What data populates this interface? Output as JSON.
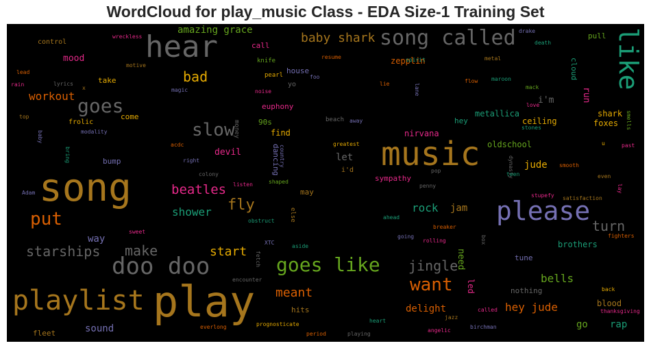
{
  "chart_title": "WordCloud for play_music Class - EDA Size-1 Training Set",
  "chart_data": {
    "type": "wordcloud",
    "title": "WordCloud for play_music Class - EDA Size-1 Training Set",
    "background": "#000000",
    "colormap": "Dark2",
    "words": [
      {
        "text": "play",
        "color": "#a6761d",
        "weight": 1.0
      },
      {
        "text": "song",
        "color": "#a6761d",
        "weight": 0.9
      },
      {
        "text": "music",
        "color": "#a6761d",
        "weight": 0.85
      },
      {
        "text": "playlist",
        "color": "#a6761d",
        "weight": 0.72
      },
      {
        "text": "please",
        "color": "#7570b3",
        "weight": 0.74
      },
      {
        "text": "hear",
        "color": "#666666",
        "weight": 0.7
      },
      {
        "text": "doo doo",
        "color": "#666666",
        "weight": 0.65
      },
      {
        "text": "song called",
        "color": "#666666",
        "weight": 0.6
      },
      {
        "text": "like",
        "color": "#1b9e77",
        "weight": 0.6
      },
      {
        "text": "goes like",
        "color": "#66a61e",
        "weight": 0.55
      },
      {
        "text": "goes",
        "color": "#666666",
        "weight": 0.5
      },
      {
        "text": "put",
        "color": "#d95f02",
        "weight": 0.47
      },
      {
        "text": "slow",
        "color": "#666666",
        "weight": 0.46
      },
      {
        "text": "want",
        "color": "#d95f02",
        "weight": 0.45
      },
      {
        "text": "starships",
        "color": "#666666",
        "weight": 0.38
      },
      {
        "text": "make",
        "color": "#666666",
        "weight": 0.38
      },
      {
        "text": "beatles",
        "color": "#e7298a",
        "weight": 0.38
      },
      {
        "text": "fly",
        "color": "#a6761d",
        "weight": 0.38
      },
      {
        "text": "turn",
        "color": "#666666",
        "weight": 0.38
      },
      {
        "text": "bad",
        "color": "#e6ab02",
        "weight": 0.36
      },
      {
        "text": "baby shark",
        "color": "#a6761d",
        "weight": 0.34
      },
      {
        "text": "start",
        "color": "#e6ab02",
        "weight": 0.34
      },
      {
        "text": "jingle",
        "color": "#666666",
        "weight": 0.33
      },
      {
        "text": "meant",
        "color": "#d95f02",
        "weight": 0.32
      },
      {
        "text": "workout",
        "color": "#d95f02",
        "weight": 0.31
      },
      {
        "text": "rock",
        "color": "#1b9e77",
        "weight": 0.3
      },
      {
        "text": "bells",
        "color": "#66a61e",
        "weight": 0.3
      },
      {
        "text": "hey jude",
        "color": "#d95f02",
        "weight": 0.3
      },
      {
        "text": "shower",
        "color": "#1b9e77",
        "weight": 0.3
      },
      {
        "text": "amazing grace",
        "color": "#66a61e",
        "weight": 0.26
      },
      {
        "text": "jam",
        "color": "#a6761d",
        "weight": 0.26
      },
      {
        "text": "delight",
        "color": "#d95f02",
        "weight": 0.26
      },
      {
        "text": "need",
        "color": "#66a61e",
        "weight": 0.24
      },
      {
        "text": "run",
        "color": "#e7298a",
        "weight": 0.24
      },
      {
        "text": "let",
        "color": "#666666",
        "weight": 0.24
      },
      {
        "text": "jude",
        "color": "#e6ab02",
        "weight": 0.24
      },
      {
        "text": "sound",
        "color": "#7570b3",
        "weight": 0.24
      },
      {
        "text": "way",
        "color": "#7570b3",
        "weight": 0.24
      },
      {
        "text": "devil",
        "color": "#e7298a",
        "weight": 0.24
      },
      {
        "text": "go",
        "color": "#66a61e",
        "weight": 0.24
      },
      {
        "text": "rap",
        "color": "#1b9e77",
        "weight": 0.24
      },
      {
        "text": "mood",
        "color": "#e7298a",
        "weight": 0.24
      },
      {
        "text": "led",
        "color": "#e7298a",
        "weight": 0.2
      },
      {
        "text": "i'm",
        "color": "#666666",
        "weight": 0.2
      },
      {
        "text": "shark",
        "color": "#e6ab02",
        "weight": 0.2
      },
      {
        "text": "foxes",
        "color": "#e6ab02",
        "weight": 0.2
      },
      {
        "text": "ceiling",
        "color": "#e6ab02",
        "weight": 0.2
      },
      {
        "text": "metallica",
        "color": "#1b9e77",
        "weight": 0.2
      },
      {
        "text": "oldschool",
        "color": "#66a61e",
        "weight": 0.2
      },
      {
        "text": "nirvana",
        "color": "#e7298a",
        "weight": 0.2
      },
      {
        "text": "brothers",
        "color": "#1b9e77",
        "weight": 0.2
      },
      {
        "text": "blood",
        "color": "#a6761d",
        "weight": 0.2
      },
      {
        "text": "zepplin",
        "color": "#d95f02",
        "weight": 0.2
      },
      {
        "text": "nothing",
        "color": "#666666",
        "weight": 0.2
      },
      {
        "text": "tune",
        "color": "#7570b3",
        "weight": 0.18
      },
      {
        "text": "find",
        "color": "#e6ab02",
        "weight": 0.18
      },
      {
        "text": "goes (small)",
        "color": "#666666",
        "weight": 0.0
      },
      {
        "text": "dancing",
        "color": "#7570b3",
        "weight": 0.18
      },
      {
        "text": "may",
        "color": "#a6761d",
        "weight": 0.18
      },
      {
        "text": "hey",
        "color": "#1b9e77",
        "weight": 0.18
      },
      {
        "text": "cloud",
        "color": "#1b9e77",
        "weight": 0.18
      },
      {
        "text": "house",
        "color": "#7570b3",
        "weight": 0.16
      },
      {
        "text": "euphony",
        "color": "#e7298a",
        "weight": 0.16
      },
      {
        "text": "sympathy",
        "color": "#e7298a",
        "weight": 0.16
      },
      {
        "text": "hits",
        "color": "#a6761d",
        "weight": 0.16
      },
      {
        "text": "fleet",
        "color": "#a6761d",
        "weight": 0.14
      },
      {
        "text": "call",
        "color": "#e7298a",
        "weight": 0.16
      },
      {
        "text": "come",
        "color": "#e6ab02",
        "weight": 0.16
      },
      {
        "text": "take",
        "color": "#e6ab02",
        "weight": 0.16
      },
      {
        "text": "bump",
        "color": "#7570b3",
        "weight": 0.14
      },
      {
        "text": "pull",
        "color": "#66a61e",
        "weight": 0.16
      },
      {
        "text": "90s",
        "color": "#66a61e",
        "weight": 0.16
      },
      {
        "text": "control",
        "color": "#a6761d",
        "weight": 0.14
      },
      {
        "text": "yo",
        "color": "#666666",
        "weight": 0.14
      },
      {
        "text": "i'd",
        "color": "#a6761d",
        "weight": 0.14
      },
      {
        "text": "frolic",
        "color": "#e6ab02",
        "weight": 0.12
      },
      {
        "text": "money",
        "color": "#666666",
        "weight": 0.12
      }
    ]
  },
  "words": [
    {
      "text": "play",
      "color": "#a6761d"
    },
    {
      "text": "song",
      "color": "#a6761d"
    },
    {
      "text": "music",
      "color": "#a6761d"
    },
    {
      "text": "playlist",
      "color": "#a6761d"
    },
    {
      "text": "please",
      "color": "#7570b3"
    },
    {
      "text": "hear",
      "color": "#666666"
    },
    {
      "text": "doo doo",
      "color": "#666666"
    },
    {
      "text": "song called",
      "color": "#666666"
    },
    {
      "text": "like",
      "color": "#1b9e77"
    },
    {
      "text": "goes like",
      "color": "#66a61e"
    },
    {
      "text": "goes",
      "color": "#666666"
    },
    {
      "text": "put",
      "color": "#d95f02"
    },
    {
      "text": "slow",
      "color": "#666666"
    },
    {
      "text": "want",
      "color": "#d95f02"
    },
    {
      "text": "starships",
      "color": "#666666"
    },
    {
      "text": "make",
      "color": "#666666"
    },
    {
      "text": "beatles",
      "color": "#e7298a"
    },
    {
      "text": "fly",
      "color": "#a6761d"
    },
    {
      "text": "turn",
      "color": "#666666"
    },
    {
      "text": "bad",
      "color": "#e6ab02"
    },
    {
      "text": "baby shark",
      "color": "#a6761d"
    },
    {
      "text": "start",
      "color": "#e6ab02"
    },
    {
      "text": "jingle",
      "color": "#666666"
    },
    {
      "text": "meant",
      "color": "#d95f02"
    },
    {
      "text": "workout",
      "color": "#d95f02"
    },
    {
      "text": "rock",
      "color": "#1b9e77"
    },
    {
      "text": "bells",
      "color": "#66a61e"
    },
    {
      "text": "hey jude",
      "color": "#d95f02"
    },
    {
      "text": "shower",
      "color": "#1b9e77"
    },
    {
      "text": "amazing grace",
      "color": "#66a61e"
    },
    {
      "text": "jam",
      "color": "#a6761d"
    },
    {
      "text": "delight",
      "color": "#d95f02"
    },
    {
      "text": "need",
      "color": "#66a61e"
    },
    {
      "text": "run",
      "color": "#e7298a"
    },
    {
      "text": "let",
      "color": "#666666"
    },
    {
      "text": "jude",
      "color": "#e6ab02"
    },
    {
      "text": "sound",
      "color": "#7570b3"
    },
    {
      "text": "way",
      "color": "#7570b3"
    },
    {
      "text": "devil",
      "color": "#e7298a"
    },
    {
      "text": "go",
      "color": "#66a61e"
    },
    {
      "text": "rap",
      "color": "#1b9e77"
    },
    {
      "text": "mood",
      "color": "#e7298a"
    },
    {
      "text": "led",
      "color": "#e7298a"
    },
    {
      "text": "i'm",
      "color": "#666666"
    },
    {
      "text": "shark",
      "color": "#e6ab02"
    },
    {
      "text": "foxes",
      "color": "#e6ab02"
    },
    {
      "text": "ceiling",
      "color": "#e6ab02"
    },
    {
      "text": "metallica",
      "color": "#1b9e77"
    },
    {
      "text": "oldschool",
      "color": "#66a61e"
    },
    {
      "text": "nirvana",
      "color": "#e7298a"
    },
    {
      "text": "brothers",
      "color": "#1b9e77"
    },
    {
      "text": "blood",
      "color": "#a6761d"
    },
    {
      "text": "zepplin",
      "color": "#d95f02"
    },
    {
      "text": "nothing",
      "color": "#666666"
    },
    {
      "text": "tune",
      "color": "#7570b3"
    },
    {
      "text": "find",
      "color": "#e6ab02"
    },
    {
      "text": "dancing",
      "color": "#7570b3"
    },
    {
      "text": "may",
      "color": "#a6761d"
    },
    {
      "text": "hey",
      "color": "#1b9e77"
    },
    {
      "text": "cloud",
      "color": "#1b9e77"
    },
    {
      "text": "house",
      "color": "#7570b3"
    },
    {
      "text": "euphony",
      "color": "#e7298a"
    },
    {
      "text": "sympathy",
      "color": "#e7298a"
    },
    {
      "text": "hits",
      "color": "#a6761d"
    },
    {
      "text": "fleet",
      "color": "#a6761d"
    },
    {
      "text": "call",
      "color": "#e7298a"
    },
    {
      "text": "come",
      "color": "#e6ab02"
    },
    {
      "text": "take",
      "color": "#e6ab02"
    },
    {
      "text": "bump",
      "color": "#7570b3"
    },
    {
      "text": "pull",
      "color": "#66a61e"
    },
    {
      "text": "90s",
      "color": "#66a61e"
    },
    {
      "text": "control",
      "color": "#a6761d"
    },
    {
      "text": "yo",
      "color": "#666666"
    },
    {
      "text": "i'd",
      "color": "#a6761d"
    },
    {
      "text": "frolic",
      "color": "#e6ab02"
    },
    {
      "text": "money",
      "color": "#666666"
    },
    {
      "text": "knife",
      "color": "#66a61e"
    },
    {
      "text": "pearl",
      "color": "#e6ab02"
    },
    {
      "text": "spirit",
      "color": "#1b9e77"
    },
    {
      "text": "flow",
      "color": "#d95f02"
    },
    {
      "text": "maroon",
      "color": "#1b9e77"
    },
    {
      "text": "mack",
      "color": "#66a61e"
    },
    {
      "text": "love",
      "color": "#e7298a"
    },
    {
      "text": "stones",
      "color": "#1b9e77"
    },
    {
      "text": "drake",
      "color": "#7570b3"
    },
    {
      "text": "death",
      "color": "#1b9e77"
    },
    {
      "text": "metal",
      "color": "#a6761d"
    },
    {
      "text": "resume",
      "color": "#d95f02"
    },
    {
      "text": "wreckless",
      "color": "#e7298a"
    },
    {
      "text": "motive",
      "color": "#a6761d"
    },
    {
      "text": "lead",
      "color": "#d95f02"
    },
    {
      "text": "rain",
      "color": "#e7298a"
    },
    {
      "text": "lyrics",
      "color": "#666666"
    },
    {
      "text": "x",
      "color": "#a6761d"
    },
    {
      "text": "magic",
      "color": "#7570b3"
    },
    {
      "text": "noise",
      "color": "#e7298a"
    },
    {
      "text": "foo",
      "color": "#7570b3"
    },
    {
      "text": "lie",
      "color": "#d95f02"
    },
    {
      "text": "lane",
      "color": "#7570b3"
    },
    {
      "text": "top",
      "color": "#a6761d"
    },
    {
      "text": "baby",
      "color": "#7570b3"
    },
    {
      "text": "bring",
      "color": "#1b9e77"
    },
    {
      "text": "modality",
      "color": "#7570b3"
    },
    {
      "text": "acdc",
      "color": "#d95f02"
    },
    {
      "text": "right",
      "color": "#7570b3"
    },
    {
      "text": "country",
      "color": "#7570b3"
    },
    {
      "text": "beach",
      "color": "#666666"
    },
    {
      "text": "away",
      "color": "#7570b3"
    },
    {
      "text": "greatest",
      "color": "#e6ab02"
    },
    {
      "text": "colony",
      "color": "#666666"
    },
    {
      "text": "listen",
      "color": "#e7298a"
    },
    {
      "text": "shaped",
      "color": "#66a61e"
    },
    {
      "text": "penny",
      "color": "#666666"
    },
    {
      "text": "pop",
      "color": "#666666"
    },
    {
      "text": "dynasty",
      "color": "#666666"
    },
    {
      "text": "teen",
      "color": "#1b9e77"
    },
    {
      "text": "smooth",
      "color": "#d95f02"
    },
    {
      "text": "even",
      "color": "#a6761d"
    },
    {
      "text": "u",
      "color": "#e6ab02"
    },
    {
      "text": "past",
      "color": "#e7298a"
    },
    {
      "text": "lay",
      "color": "#e7298a"
    },
    {
      "text": "smells",
      "color": "#66a61e"
    },
    {
      "text": "stupefy",
      "color": "#e7298a"
    },
    {
      "text": "satisfaction",
      "color": "#a6761d"
    },
    {
      "text": "Adam",
      "color": "#7570b3"
    },
    {
      "text": "obstruct",
      "color": "#1b9e77"
    },
    {
      "text": "else",
      "color": "#a6761d"
    },
    {
      "text": "ahead",
      "color": "#1b9e77"
    },
    {
      "text": "breaker",
      "color": "#d95f02"
    },
    {
      "text": "sweet",
      "color": "#e7298a"
    },
    {
      "text": "XTC",
      "color": "#7570b3"
    },
    {
      "text": "aside",
      "color": "#1b9e77"
    },
    {
      "text": "going",
      "color": "#7570b3"
    },
    {
      "text": "rolling",
      "color": "#e7298a"
    },
    {
      "text": "box",
      "color": "#666666"
    },
    {
      "text": "fighters",
      "color": "#d95f02"
    },
    {
      "text": "fetch",
      "color": "#666666"
    },
    {
      "text": "encounter",
      "color": "#666666"
    },
    {
      "text": "prognosticate",
      "color": "#e6ab02"
    },
    {
      "text": "heart",
      "color": "#1b9e77"
    },
    {
      "text": "jazz",
      "color": "#a6761d"
    },
    {
      "text": "called",
      "color": "#e7298a"
    },
    {
      "text": "back",
      "color": "#e6ab02"
    },
    {
      "text": "thanksgiving",
      "color": "#e7298a"
    },
    {
      "text": "everlong",
      "color": "#d95f02"
    },
    {
      "text": "period",
      "color": "#d95f02"
    },
    {
      "text": "playing",
      "color": "#666666"
    },
    {
      "text": "angelic",
      "color": "#e7298a"
    },
    {
      "text": "birchman",
      "color": "#7570b3"
    }
  ]
}
